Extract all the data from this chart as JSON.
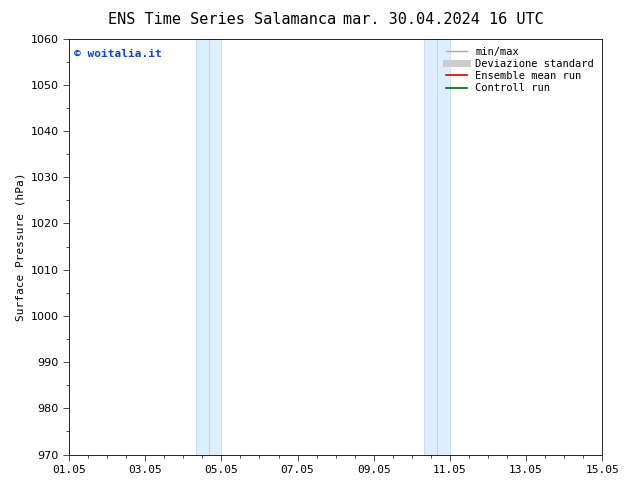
{
  "title_left": "ENS Time Series Salamanca",
  "title_right": "mar. 30.04.2024 16 UTC",
  "ylabel": "Surface Pressure (hPa)",
  "ylim": [
    970,
    1060
  ],
  "yticks": [
    970,
    980,
    990,
    1000,
    1010,
    1020,
    1030,
    1040,
    1050,
    1060
  ],
  "xlim": [
    0,
    14
  ],
  "xtick_labels": [
    "01.05",
    "03.05",
    "05.05",
    "07.05",
    "09.05",
    "11.05",
    "13.05",
    "15.05"
  ],
  "xtick_positions": [
    0,
    2,
    4,
    6,
    8,
    10,
    12,
    14
  ],
  "shaded_bands": [
    {
      "x_start": 3.33,
      "x_end": 4.0,
      "x_mid": 3.67
    },
    {
      "x_start": 9.33,
      "x_end": 10.0,
      "x_mid": 9.67
    }
  ],
  "band_color": "#ddeeff",
  "band_edge_color": "#b8d4ee",
  "watermark_text": "© woitalia.it",
  "watermark_color": "#1144cc",
  "legend_entries": [
    {
      "label": "min/max",
      "color": "#aaaaaa",
      "lw": 1.0
    },
    {
      "label": "Deviazione standard",
      "color": "#cccccc",
      "lw": 5
    },
    {
      "label": "Ensemble mean run",
      "color": "#dd0000",
      "lw": 1.2
    },
    {
      "label": "Controll run",
      "color": "#006600",
      "lw": 1.2
    }
  ],
  "bg_color": "#ffffff",
  "font_family": "DejaVu Sans Mono",
  "title_fontsize": 11,
  "label_fontsize": 8,
  "tick_fontsize": 8,
  "legend_fontsize": 7.5,
  "watermark_fontsize": 8
}
